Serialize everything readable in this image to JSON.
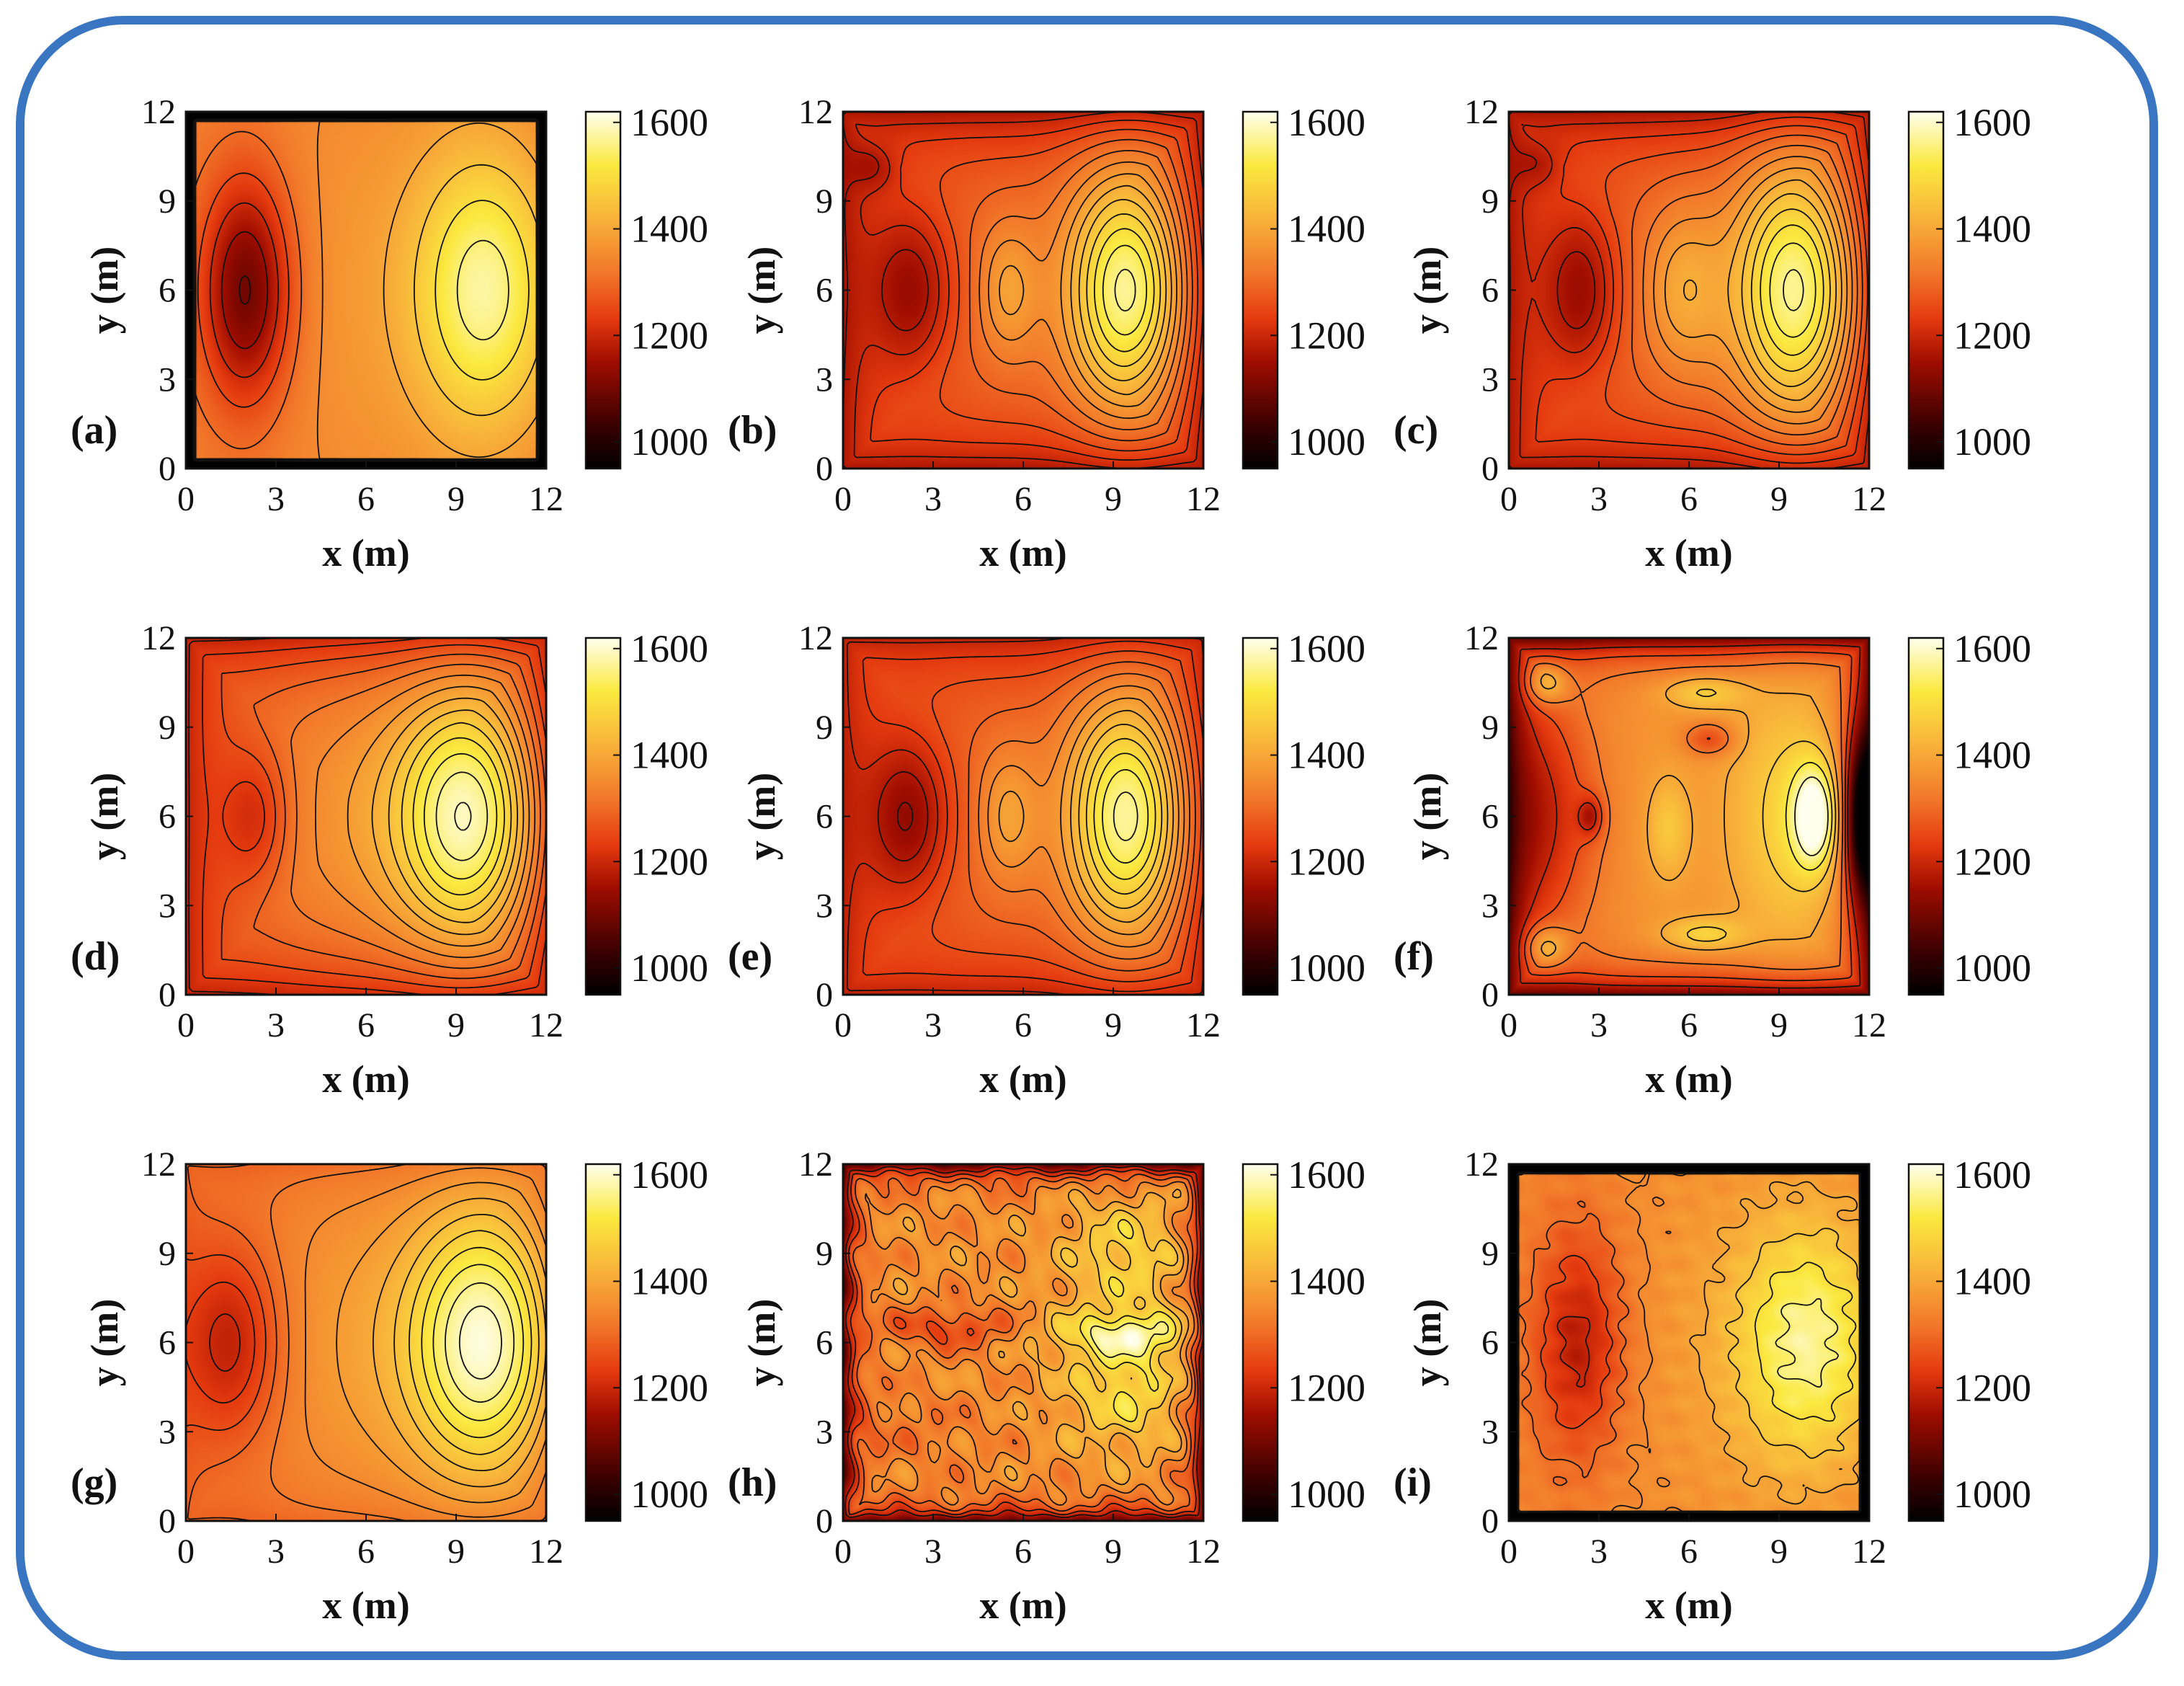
{
  "chart_data": [
    {
      "type": "heatmap",
      "panel": "(a)",
      "xlabel": "x (m)",
      "ylabel": "y (m)",
      "xticks": [
        0,
        3,
        6,
        9,
        12
      ],
      "yticks": [
        0,
        3,
        6,
        9,
        12
      ],
      "xlim": [
        0,
        12
      ],
      "ylim": [
        0,
        12
      ],
      "colorbar": {
        "ticks": [
          1000,
          1200,
          1400,
          1600
        ],
        "range": [
          950,
          1620
        ],
        "colormap": "hot"
      },
      "background_value": 1330,
      "border": {
        "value": 940,
        "width": 0.3
      },
      "features": [
        {
          "x": 2.0,
          "y": 6.0,
          "sx": 1.1,
          "sy": 2.8,
          "amp": -250
        },
        {
          "x": 10.0,
          "y": 6.0,
          "sx": 1.7,
          "sy": 3.4,
          "amp": 230
        },
        {
          "x": 6.0,
          "y": 6.0,
          "sx": 3.0,
          "sy": 6.0,
          "amp": 40
        }
      ],
      "levels": [
        1050,
        1100,
        1150,
        1200,
        1250,
        1300,
        1350,
        1400,
        1450,
        1500,
        1550
      ]
    },
    {
      "type": "heatmap",
      "panel": "(b)",
      "xlabel": "x (m)",
      "ylabel": "y (m)",
      "xticks": [
        0,
        3,
        6,
        9,
        12
      ],
      "yticks": [
        0,
        3,
        6,
        9,
        12
      ],
      "xlim": [
        0,
        12
      ],
      "ylim": [
        0,
        12
      ],
      "colorbar": {
        "ticks": [
          1000,
          1200,
          1400,
          1600
        ],
        "range": [
          950,
          1620
        ],
        "colormap": "hot"
      },
      "background_value": 1300,
      "edge_falloff": {
        "amount": 130,
        "width": 1.4
      },
      "features": [
        {
          "x": 2.3,
          "y": 6.0,
          "sx": 1.0,
          "sy": 2.0,
          "amp": -130
        },
        {
          "x": 9.5,
          "y": 6.0,
          "sx": 1.4,
          "sy": 2.8,
          "amp": 290
        },
        {
          "x": 5.5,
          "y": 6.0,
          "sx": 0.7,
          "sy": 1.6,
          "amp": 90
        },
        {
          "x": 1.0,
          "y": 10.2,
          "sx": 0.6,
          "sy": 0.6,
          "amp": -70
        }
      ],
      "levels": [
        1140,
        1170,
        1200,
        1230,
        1260,
        1290,
        1320,
        1350,
        1380,
        1410,
        1440,
        1470,
        1500,
        1530,
        1560,
        1590
      ]
    },
    {
      "type": "heatmap",
      "panel": "(c)",
      "xlabel": "x (m)",
      "ylabel": "y (m)",
      "xticks": [
        0,
        3,
        6,
        9,
        12
      ],
      "yticks": [
        0,
        3,
        6,
        9,
        12
      ],
      "xlim": [
        0,
        12
      ],
      "ylim": [
        0,
        12
      ],
      "colorbar": {
        "ticks": [
          1000,
          1200,
          1400,
          1600
        ],
        "range": [
          950,
          1620
        ],
        "colormap": "hot"
      },
      "background_value": 1300,
      "edge_falloff": {
        "amount": 130,
        "width": 1.4
      },
      "features": [
        {
          "x": 2.4,
          "y": 6.0,
          "sx": 0.9,
          "sy": 2.0,
          "amp": -130
        },
        {
          "x": 9.6,
          "y": 6.0,
          "sx": 1.5,
          "sy": 3.0,
          "amp": 290
        },
        {
          "x": 5.8,
          "y": 6.0,
          "sx": 0.9,
          "sy": 2.0,
          "amp": 100
        },
        {
          "x": 1.0,
          "y": 10.3,
          "sx": 0.6,
          "sy": 0.6,
          "amp": -60
        }
      ],
      "levels": [
        1140,
        1170,
        1200,
        1230,
        1260,
        1290,
        1320,
        1350,
        1380,
        1410,
        1440,
        1470,
        1500,
        1530,
        1560,
        1590
      ]
    },
    {
      "type": "heatmap",
      "panel": "(d)",
      "xlabel": "x (m)",
      "ylabel": "y (m)",
      "xticks": [
        0,
        3,
        6,
        9,
        12
      ],
      "yticks": [
        0,
        3,
        6,
        9,
        12
      ],
      "xlim": [
        0,
        12
      ],
      "ylim": [
        0,
        12
      ],
      "colorbar": {
        "ticks": [
          1000,
          1200,
          1400,
          1600
        ],
        "range": [
          950,
          1620
        ],
        "colormap": "hot"
      },
      "background_value": 1310,
      "edge_falloff": {
        "amount": 120,
        "width": 1.5
      },
      "features": [
        {
          "x": 2.3,
          "y": 6.0,
          "sx": 0.8,
          "sy": 1.6,
          "amp": -90
        },
        {
          "x": 9.5,
          "y": 6.0,
          "sx": 1.7,
          "sy": 3.0,
          "amp": 280
        },
        {
          "x": 6.0,
          "y": 6.0,
          "sx": 2.5,
          "sy": 4.0,
          "amp": 60
        }
      ],
      "levels": [
        1140,
        1170,
        1200,
        1230,
        1260,
        1290,
        1320,
        1350,
        1380,
        1410,
        1440,
        1470,
        1500,
        1530,
        1560,
        1590
      ]
    },
    {
      "type": "heatmap",
      "panel": "(e)",
      "xlabel": "x (m)",
      "ylabel": "y (m)",
      "xticks": [
        0,
        3,
        6,
        9,
        12
      ],
      "yticks": [
        0,
        3,
        6,
        9,
        12
      ],
      "xlim": [
        0,
        12
      ],
      "ylim": [
        0,
        12
      ],
      "colorbar": {
        "ticks": [
          1000,
          1200,
          1400,
          1600
        ],
        "range": [
          950,
          1620
        ],
        "colormap": "hot"
      },
      "background_value": 1300,
      "edge_falloff": {
        "amount": 110,
        "width": 1.4
      },
      "features": [
        {
          "x": 2.2,
          "y": 6.0,
          "sx": 1.0,
          "sy": 2.0,
          "amp": -140
        },
        {
          "x": 9.5,
          "y": 6.0,
          "sx": 1.4,
          "sy": 2.8,
          "amp": 290
        },
        {
          "x": 5.5,
          "y": 6.0,
          "sx": 0.7,
          "sy": 1.6,
          "amp": 90
        }
      ],
      "levels": [
        1140,
        1170,
        1200,
        1230,
        1260,
        1290,
        1320,
        1350,
        1380,
        1410,
        1440,
        1470,
        1500,
        1530,
        1560,
        1590
      ]
    },
    {
      "type": "heatmap",
      "panel": "(f)",
      "xlabel": "x (m)",
      "ylabel": "y (m)",
      "xticks": [
        0,
        3,
        6,
        9,
        12
      ],
      "yticks": [
        0,
        3,
        6,
        9,
        12
      ],
      "xlim": [
        0,
        12
      ],
      "ylim": [
        0,
        12
      ],
      "colorbar": {
        "ticks": [
          1000,
          1200,
          1400,
          1600
        ],
        "range": [
          950,
          1620
        ],
        "colormap": "hot"
      },
      "background_value": 1370,
      "edge_falloff": {
        "amount": 260,
        "width": 0.7
      },
      "features": [
        {
          "x": 1.2,
          "y": 6.0,
          "sx": 1.3,
          "sy": 3.0,
          "amp": -150
        },
        {
          "x": 2.7,
          "y": 6.0,
          "sx": 0.3,
          "sy": 0.5,
          "amp": -130
        },
        {
          "x": 10.2,
          "y": 6.0,
          "sx": 0.5,
          "sy": 1.2,
          "amp": 240
        },
        {
          "x": 9.5,
          "y": 6.0,
          "sx": 1.4,
          "sy": 3.0,
          "amp": 120
        },
        {
          "x": 11.8,
          "y": 6.0,
          "sx": 0.4,
          "sy": 2.0,
          "amp": -350
        },
        {
          "x": 1.2,
          "y": 10.5,
          "sx": 0.5,
          "sy": 0.5,
          "amp": 140
        },
        {
          "x": 1.2,
          "y": 1.6,
          "sx": 0.5,
          "sy": 0.5,
          "amp": 140
        },
        {
          "x": 6.5,
          "y": 2.0,
          "sx": 1.0,
          "sy": 0.4,
          "amp": 120
        },
        {
          "x": 6.5,
          "y": 10.2,
          "sx": 1.0,
          "sy": 0.4,
          "amp": 110
        },
        {
          "x": 6.7,
          "y": 8.6,
          "sx": 0.6,
          "sy": 0.4,
          "amp": -120
        },
        {
          "x": 5.3,
          "y": 5.6,
          "sx": 0.5,
          "sy": 1.2,
          "amp": 90
        }
      ],
      "levels": [
        1200,
        1260,
        1320,
        1400,
        1460,
        1520,
        1580
      ]
    },
    {
      "type": "heatmap",
      "panel": "(g)",
      "xlabel": "x (m)",
      "ylabel": "y (m)",
      "xticks": [
        0,
        3,
        6,
        9,
        12
      ],
      "yticks": [
        0,
        3,
        6,
        9,
        12
      ],
      "xlim": [
        0,
        12
      ],
      "ylim": [
        0,
        12
      ],
      "colorbar": {
        "ticks": [
          1000,
          1200,
          1400,
          1600
        ],
        "range": [
          950,
          1620
        ],
        "colormap": "hot"
      },
      "background_value": 1330,
      "edge_falloff": {
        "amount": 40,
        "width": 1.0
      },
      "features": [
        {
          "x": 1.5,
          "y": 6.0,
          "sx": 1.2,
          "sy": 2.4,
          "amp": -140
        },
        {
          "x": 10.0,
          "y": 6.0,
          "sx": 1.8,
          "sy": 3.2,
          "amp": 270
        },
        {
          "x": 6.0,
          "y": 6.0,
          "sx": 2.5,
          "sy": 4.0,
          "amp": 50
        }
      ],
      "levels": [
        1200,
        1230,
        1260,
        1290,
        1320,
        1350,
        1380,
        1410,
        1440,
        1470,
        1500,
        1530,
        1560,
        1590
      ]
    },
    {
      "type": "heatmap",
      "panel": "(h)",
      "xlabel": "x (m)",
      "ylabel": "y (m)",
      "xticks": [
        0,
        3,
        6,
        9,
        12
      ],
      "yticks": [
        0,
        3,
        6,
        9,
        12
      ],
      "xlim": [
        0,
        12
      ],
      "ylim": [
        0,
        12
      ],
      "colorbar": {
        "ticks": [
          1000,
          1200,
          1400,
          1600
        ],
        "range": [
          950,
          1620
        ],
        "colormap": "hot"
      },
      "background_value": 1360,
      "edge_falloff": {
        "amount": 260,
        "width": 0.4
      },
      "features": [
        {
          "x": 3.5,
          "y": 6.5,
          "sx": 1.5,
          "sy": 0.5,
          "amp": -120
        },
        {
          "x": 9.5,
          "y": 6.3,
          "sx": 1.8,
          "sy": 0.5,
          "amp": 150
        },
        {
          "x": 9.5,
          "y": 4.5,
          "sx": 1.5,
          "sy": 1.5,
          "amp": 140
        },
        {
          "x": 9.5,
          "y": 9.0,
          "sx": 1.5,
          "sy": 1.5,
          "amp": 120
        },
        {
          "x": 2.0,
          "y": 3.0,
          "sx": 2.0,
          "sy": 1.0,
          "amp": -40
        }
      ],
      "noise": {
        "amp": 40,
        "freq_y": 3.0
      },
      "levels": [
        1200,
        1250,
        1300,
        1350,
        1400,
        1450,
        1500,
        1550
      ]
    },
    {
      "type": "heatmap",
      "panel": "(i)",
      "xlabel": "x (m)",
      "ylabel": "y (m)",
      "xticks": [
        0,
        3,
        6,
        9,
        12
      ],
      "yticks": [
        0,
        3,
        6,
        9,
        12
      ],
      "xlim": [
        0,
        12
      ],
      "ylim": [
        0,
        12
      ],
      "colorbar": {
        "ticks": [
          1000,
          1200,
          1400,
          1600
        ],
        "range": [
          950,
          1620
        ],
        "colormap": "hot"
      },
      "background_value": 1340,
      "border": {
        "value": 940,
        "width": 0.3
      },
      "features": [
        {
          "x": 2.3,
          "y": 6.0,
          "sx": 1.1,
          "sy": 2.8,
          "amp": -170
        },
        {
          "x": 10.0,
          "y": 6.0,
          "sx": 1.8,
          "sy": 3.0,
          "amp": 220
        },
        {
          "x": 6.0,
          "y": 6.0,
          "sx": 3.0,
          "sy": 6.0,
          "amp": 30
        }
      ],
      "noise": {
        "amp": 12,
        "freq_y": 6.0
      },
      "levels": [
        1200,
        1250,
        1300,
        1350,
        1400,
        1450,
        1500,
        1550
      ]
    }
  ]
}
